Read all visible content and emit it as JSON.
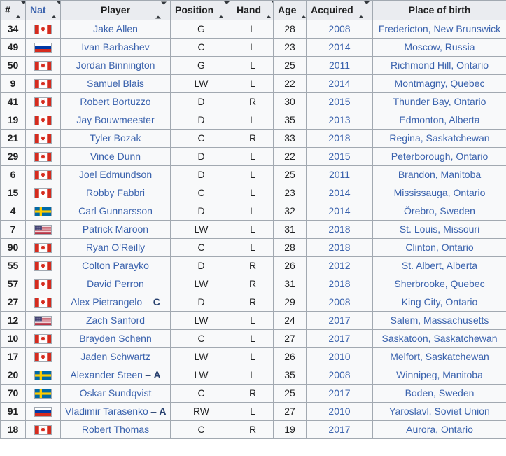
{
  "colors": {
    "table_border": "#a2a9b1",
    "header_bg": "#eaecf0",
    "cell_bg": "#f8f9fa",
    "player_cell_bg": "#eaecf0",
    "link_blue": "#3a62ad",
    "text": "#202122",
    "captain_suffix": "#27406e"
  },
  "table": {
    "captain_separator": " – ",
    "columns": [
      {
        "key": "num",
        "label": "#",
        "sortable": true,
        "is_link": false,
        "width": 36
      },
      {
        "key": "nat",
        "label": "Nat",
        "sortable": true,
        "is_link": true,
        "width": 50
      },
      {
        "key": "player",
        "label": "Player",
        "sortable": true,
        "is_link": false,
        "width": 157,
        "icon_right": true
      },
      {
        "key": "position",
        "label": "Position",
        "sortable": true,
        "is_link": false,
        "width": 88
      },
      {
        "key": "hand",
        "label": "Hand",
        "sortable": true,
        "is_link": false,
        "width": 59
      },
      {
        "key": "age",
        "label": "Age",
        "sortable": true,
        "is_link": false,
        "width": 47
      },
      {
        "key": "acquired",
        "label": "Acquired",
        "sortable": true,
        "is_link": false,
        "width": 95
      },
      {
        "key": "birthplace",
        "label": "Place of birth",
        "sortable": false,
        "is_link": false,
        "width": 191
      }
    ],
    "rows": [
      {
        "num": "34",
        "nat": "CAN",
        "player": "Jake Allen",
        "captain": "",
        "position": "G",
        "hand": "L",
        "age": "28",
        "acquired": "2008",
        "birthplace": "Fredericton, New Brunswick"
      },
      {
        "num": "49",
        "nat": "RUS",
        "player": "Ivan Barbashev",
        "captain": "",
        "position": "C",
        "hand": "L",
        "age": "23",
        "acquired": "2014",
        "birthplace": "Moscow, Russia"
      },
      {
        "num": "50",
        "nat": "CAN",
        "player": "Jordan Binnington",
        "captain": "",
        "position": "G",
        "hand": "L",
        "age": "25",
        "acquired": "2011",
        "birthplace": "Richmond Hill, Ontario"
      },
      {
        "num": "9",
        "nat": "CAN",
        "player": "Samuel Blais",
        "captain": "",
        "position": "LW",
        "hand": "L",
        "age": "22",
        "acquired": "2014",
        "birthplace": "Montmagny, Quebec"
      },
      {
        "num": "41",
        "nat": "CAN",
        "player": "Robert Bortuzzo",
        "captain": "",
        "position": "D",
        "hand": "R",
        "age": "30",
        "acquired": "2015",
        "birthplace": "Thunder Bay, Ontario"
      },
      {
        "num": "19",
        "nat": "CAN",
        "player": "Jay Bouwmeester",
        "captain": "",
        "position": "D",
        "hand": "L",
        "age": "35",
        "acquired": "2013",
        "birthplace": "Edmonton, Alberta"
      },
      {
        "num": "21",
        "nat": "CAN",
        "player": "Tyler Bozak",
        "captain": "",
        "position": "C",
        "hand": "R",
        "age": "33",
        "acquired": "2018",
        "birthplace": "Regina, Saskatchewan"
      },
      {
        "num": "29",
        "nat": "CAN",
        "player": "Vince Dunn",
        "captain": "",
        "position": "D",
        "hand": "L",
        "age": "22",
        "acquired": "2015",
        "birthplace": "Peterborough, Ontario"
      },
      {
        "num": "6",
        "nat": "CAN",
        "player": "Joel Edmundson",
        "captain": "",
        "position": "D",
        "hand": "L",
        "age": "25",
        "acquired": "2011",
        "birthplace": "Brandon, Manitoba"
      },
      {
        "num": "15",
        "nat": "CAN",
        "player": "Robby Fabbri",
        "captain": "",
        "position": "C",
        "hand": "L",
        "age": "23",
        "acquired": "2014",
        "birthplace": "Mississauga, Ontario"
      },
      {
        "num": "4",
        "nat": "SWE",
        "player": "Carl Gunnarsson",
        "captain": "",
        "position": "D",
        "hand": "L",
        "age": "32",
        "acquired": "2014",
        "birthplace": "Örebro, Sweden"
      },
      {
        "num": "7",
        "nat": "USA",
        "player": "Patrick Maroon",
        "captain": "",
        "position": "LW",
        "hand": "L",
        "age": "31",
        "acquired": "2018",
        "birthplace": "St. Louis, Missouri"
      },
      {
        "num": "90",
        "nat": "CAN",
        "player": "Ryan O'Reilly",
        "captain": "",
        "position": "C",
        "hand": "L",
        "age": "28",
        "acquired": "2018",
        "birthplace": "Clinton, Ontario"
      },
      {
        "num": "55",
        "nat": "CAN",
        "player": "Colton Parayko",
        "captain": "",
        "position": "D",
        "hand": "R",
        "age": "26",
        "acquired": "2012",
        "birthplace": "St. Albert, Alberta"
      },
      {
        "num": "57",
        "nat": "CAN",
        "player": "David Perron",
        "captain": "",
        "position": "LW",
        "hand": "R",
        "age": "31",
        "acquired": "2018",
        "birthplace": "Sherbrooke, Quebec"
      },
      {
        "num": "27",
        "nat": "CAN",
        "player": "Alex Pietrangelo",
        "captain": "C",
        "position": "D",
        "hand": "R",
        "age": "29",
        "acquired": "2008",
        "birthplace": "King City, Ontario"
      },
      {
        "num": "12",
        "nat": "USA",
        "player": "Zach Sanford",
        "captain": "",
        "position": "LW",
        "hand": "L",
        "age": "24",
        "acquired": "2017",
        "birthplace": "Salem, Massachusetts"
      },
      {
        "num": "10",
        "nat": "CAN",
        "player": "Brayden Schenn",
        "captain": "",
        "position": "C",
        "hand": "L",
        "age": "27",
        "acquired": "2017",
        "birthplace": "Saskatoon, Saskatchewan"
      },
      {
        "num": "17",
        "nat": "CAN",
        "player": "Jaden Schwartz",
        "captain": "",
        "position": "LW",
        "hand": "L",
        "age": "26",
        "acquired": "2010",
        "birthplace": "Melfort, Saskatchewan"
      },
      {
        "num": "20",
        "nat": "SWE",
        "player": "Alexander Steen",
        "captain": "A",
        "position": "LW",
        "hand": "L",
        "age": "35",
        "acquired": "2008",
        "birthplace": "Winnipeg, Manitoba"
      },
      {
        "num": "70",
        "nat": "SWE",
        "player": "Oskar Sundqvist",
        "captain": "",
        "position": "C",
        "hand": "R",
        "age": "25",
        "acquired": "2017",
        "birthplace": "Boden, Sweden"
      },
      {
        "num": "91",
        "nat": "RUS",
        "player": "Vladimir Tarasenko",
        "captain": "A",
        "position": "RW",
        "hand": "L",
        "age": "27",
        "acquired": "2010",
        "birthplace": "Yaroslavl, Soviet Union"
      },
      {
        "num": "18",
        "nat": "CAN",
        "player": "Robert Thomas",
        "captain": "",
        "position": "C",
        "hand": "R",
        "age": "19",
        "acquired": "2017",
        "birthplace": "Aurora, Ontario"
      }
    ]
  },
  "flags": {
    "CAN": {
      "name": "flag-canada-icon",
      "colors": {
        "red": "#d52b1e",
        "white": "#ffffff"
      }
    },
    "RUS": {
      "name": "flag-russia-icon",
      "colors": {
        "white": "#ffffff",
        "blue": "#0039a6",
        "red": "#d52b1e"
      }
    },
    "SWE": {
      "name": "flag-sweden-icon",
      "colors": {
        "blue": "#006aa7",
        "yellow": "#fecc00"
      }
    },
    "USA": {
      "name": "flag-usa-icon",
      "colors": {
        "red": "#b22234",
        "white": "#ffffff",
        "blue": "#3c3b6e"
      }
    }
  }
}
